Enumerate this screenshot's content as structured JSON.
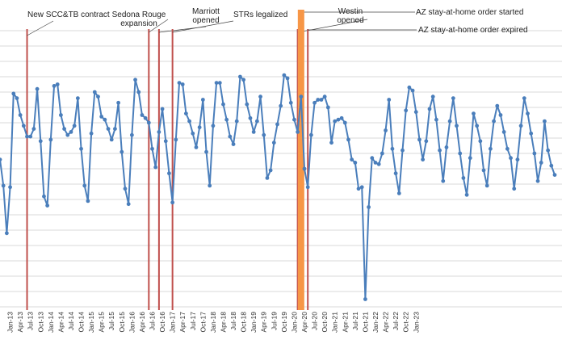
{
  "chart_data": {
    "type": "line",
    "title": "",
    "xlabel": "",
    "ylabel": "",
    "ylim": [
      0,
      18
    ],
    "grid": true,
    "x_start": "Oct-12",
    "x_tick_labels": [
      "Jan-13",
      "Apr-13",
      "Jul-13",
      "Oct-13",
      "Jan-14",
      "Apr-14",
      "Jul-14",
      "Oct-14",
      "Jan-15",
      "Apr-15",
      "Jul-15",
      "Oct-15",
      "Jan-16",
      "Apr-16",
      "Jul-16",
      "Oct-16",
      "Jan-17",
      "Apr-17",
      "Jul-17",
      "Oct-17",
      "Jan-18",
      "Apr-18",
      "Jul-18",
      "Oct-18",
      "Jan-19",
      "Apr-19",
      "Jul-19",
      "Oct-19",
      "Jan-20",
      "Apr-20",
      "Jul-20",
      "Oct-20",
      "Jan-21",
      "Apr-21",
      "Jul-21",
      "Oct-21",
      "Jan-22",
      "Apr-22",
      "Jul-22",
      "Oct-22",
      "Jan-23"
    ],
    "series": [
      {
        "color": "#4a7ebb",
        "values": [
          9.6,
          7.9,
          4.8,
          7.8,
          13.9,
          13.6,
          12.5,
          11.8,
          11.1,
          11.1,
          11.6,
          14.2,
          10.8,
          7.2,
          6.6,
          10.9,
          14.4,
          14.5,
          12.5,
          11.6,
          11.2,
          11.4,
          11.8,
          13.6,
          10.3,
          7.9,
          6.9,
          11.3,
          14.0,
          13.7,
          12.4,
          12.2,
          11.6,
          10.9,
          11.6,
          13.3,
          10.1,
          7.7,
          6.7,
          11.2,
          14.8,
          14.0,
          12.5,
          12.3,
          12.0,
          10.3,
          9.1,
          11.4,
          12.9,
          10.8,
          8.7,
          6.8,
          10.9,
          14.6,
          14.5,
          12.6,
          12.1,
          11.3,
          10.4,
          11.7,
          13.5,
          10.1,
          7.9,
          11.8,
          14.6,
          14.6,
          13.2,
          12.2,
          11.1,
          10.6,
          12.1,
          15.0,
          14.8,
          13.2,
          12.3,
          11.4,
          12.1,
          13.7,
          11.2,
          8.4,
          8.9,
          10.7,
          11.9,
          13.1,
          15.1,
          14.9,
          13.3,
          12.2,
          11.4,
          13.7,
          9.0,
          7.8,
          11.2,
          13.3,
          13.5,
          13.5,
          13.7,
          13.0,
          10.7,
          12.1,
          12.2,
          12.3,
          12.0,
          10.9,
          9.6,
          9.4,
          7.7,
          7.8,
          0.5,
          6.5,
          9.7,
          9.4,
          9.3,
          10.0,
          11.5,
          13.5,
          10.3,
          8.7,
          7.4,
          10.2,
          12.8,
          14.3,
          14.1,
          12.7,
          10.9,
          9.6,
          10.8,
          12.9,
          13.7,
          12.2,
          10.2,
          8.2,
          10.4,
          12.1,
          13.6,
          11.8,
          10.0,
          8.4,
          7.3,
          9.7,
          12.6,
          11.8,
          10.8,
          8.9,
          7.9,
          10.3,
          12.1,
          13.1,
          12.5,
          11.4,
          10.3,
          9.7,
          7.7,
          9.6,
          11.8,
          13.6,
          12.6,
          11.3,
          10.0,
          8.2,
          9.4,
          12.1,
          10.2,
          9.2,
          8.6
        ]
      }
    ],
    "events": [
      {
        "label": "New SCC&TB contract",
        "date": "Jun-13",
        "color": "#c0504d"
      },
      {
        "label": "Sedona Rouge expansion",
        "date": "Jun-16",
        "color": "#c0504d"
      },
      {
        "label": "Marriott opened",
        "date": "Sep-16",
        "color": "#c0504d"
      },
      {
        "label": "STRs legalized",
        "date": "Jan-17",
        "color": "#c0504d"
      },
      {
        "label": "Westin opened",
        "date": "Feb-20",
        "color": "#c0504d"
      },
      {
        "label": "AZ stay-at-home order started",
        "date": "Mar-20",
        "color": "#f79646"
      },
      {
        "label": "AZ stay-at-home order expired",
        "date": "May-20",
        "color": "#c0504d"
      }
    ]
  }
}
